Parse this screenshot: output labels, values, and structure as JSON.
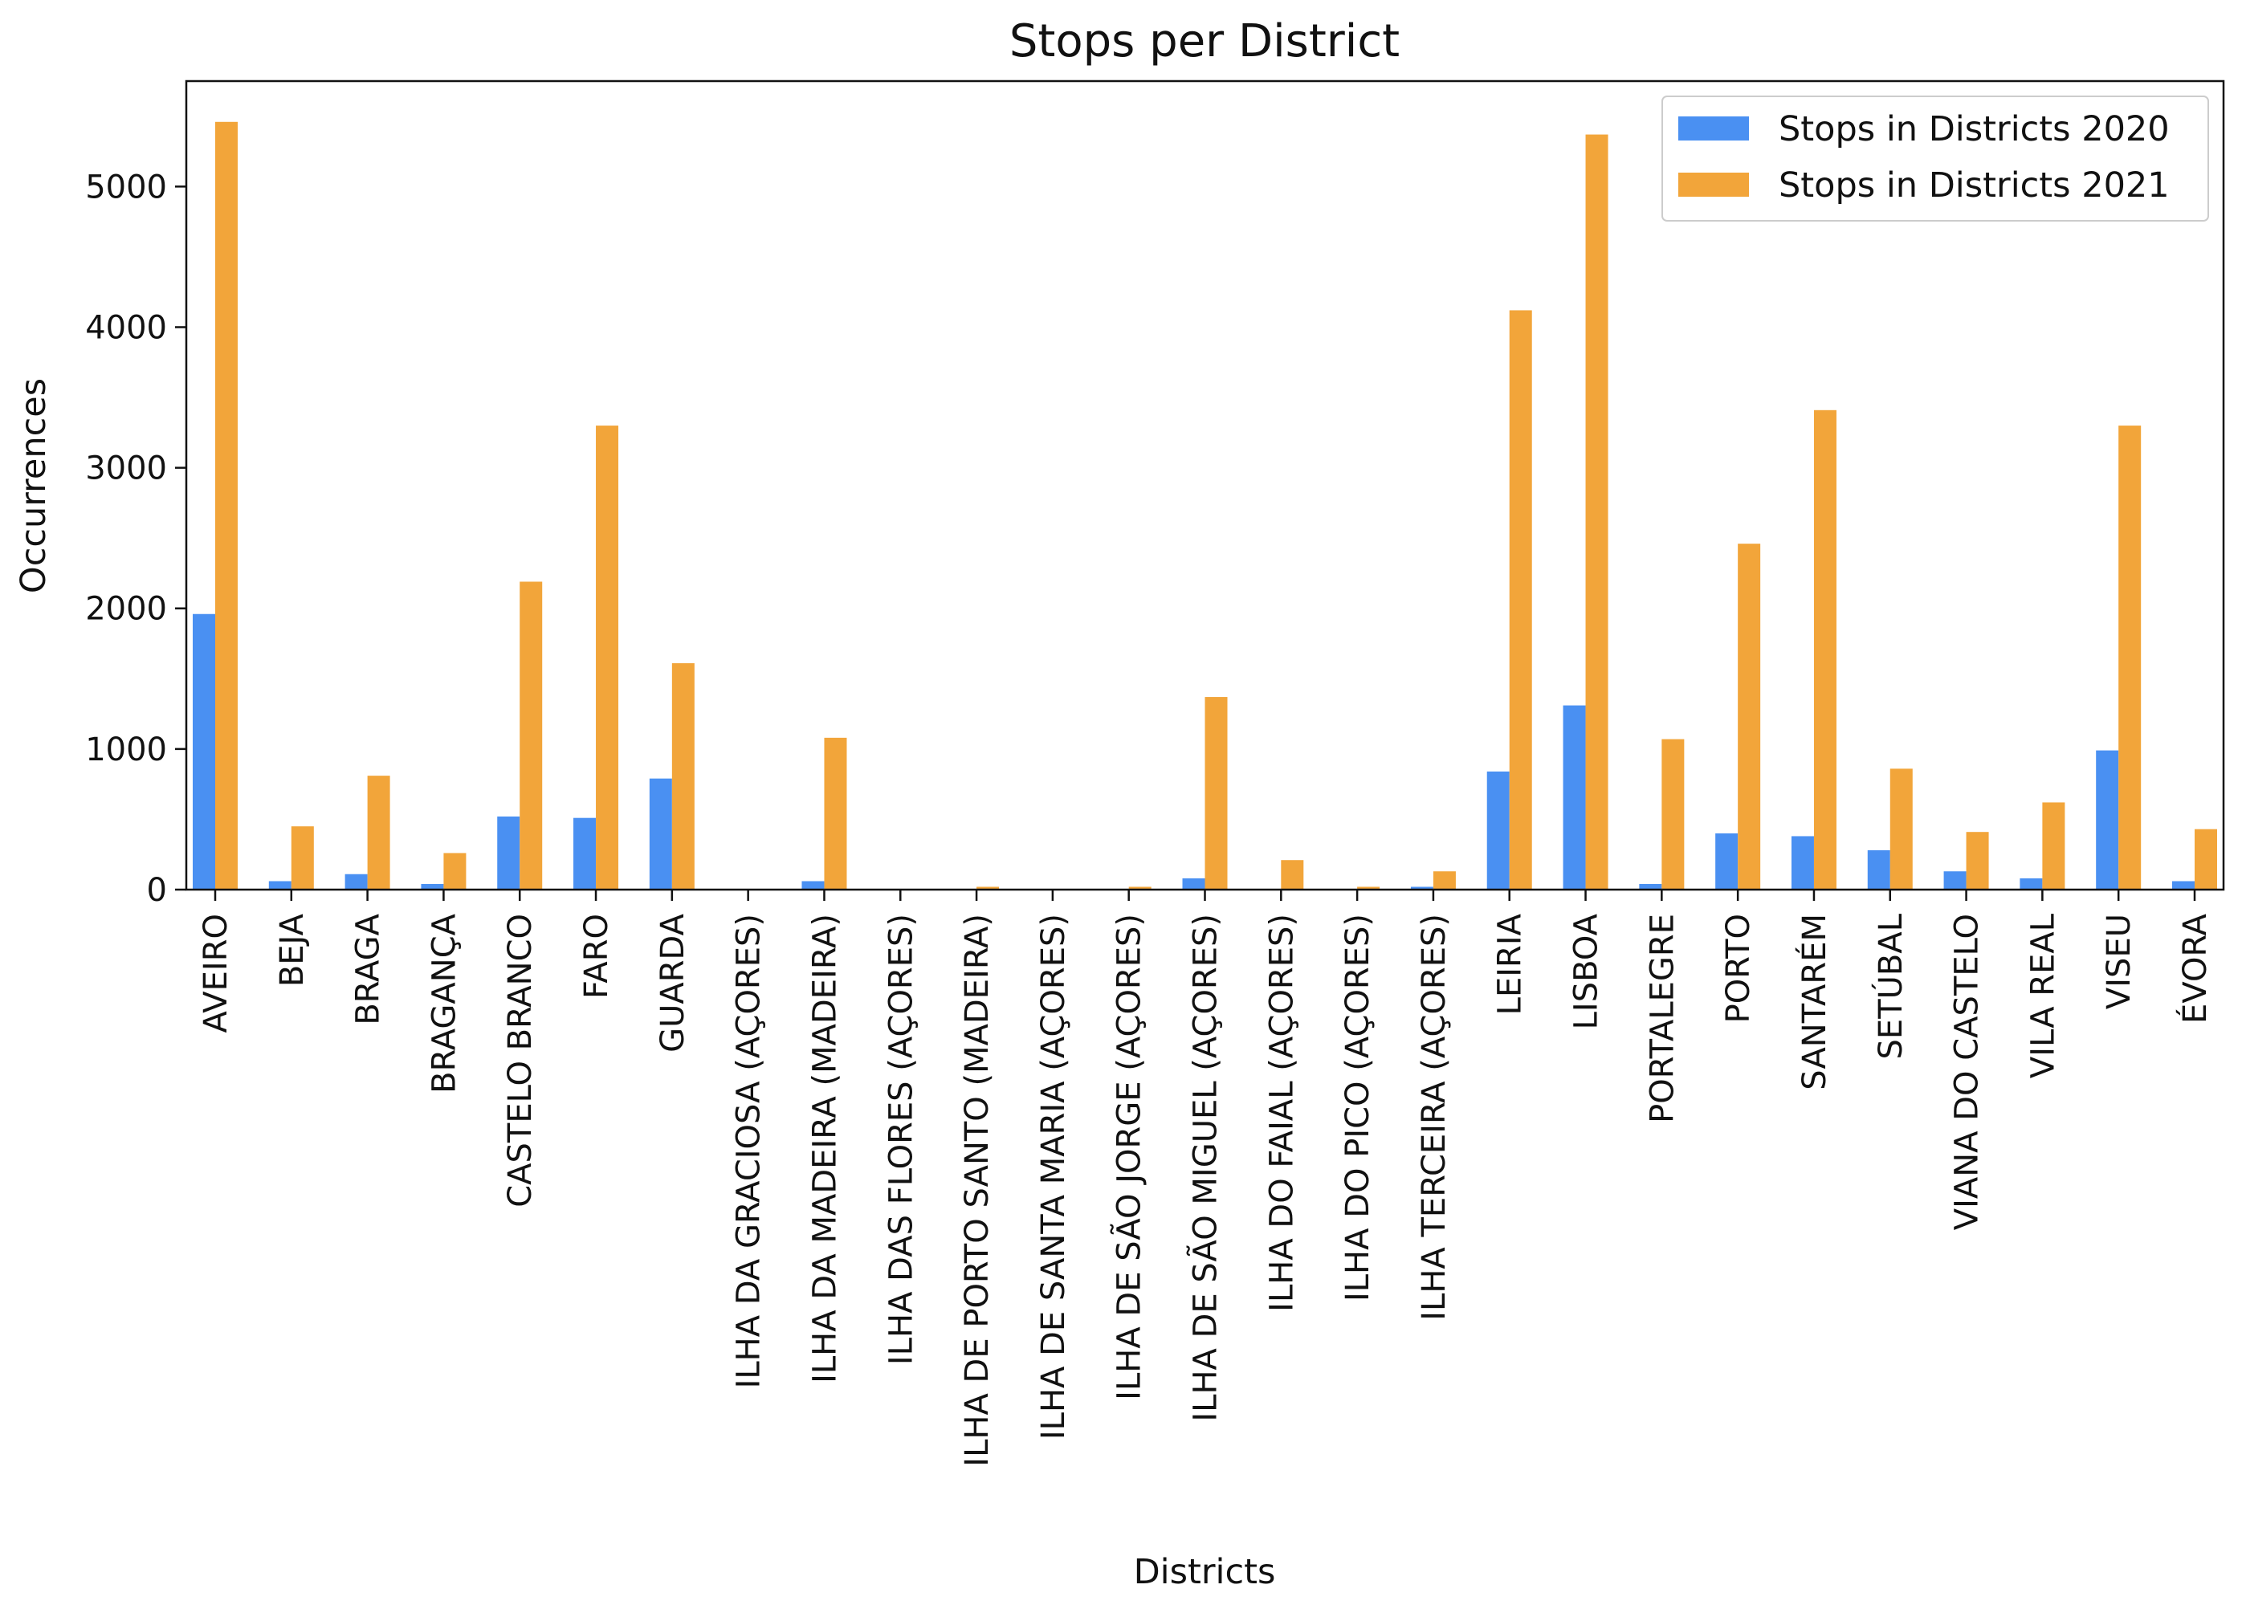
{
  "chart_data": {
    "type": "bar",
    "title": "Stops per District",
    "xlabel": "Districts",
    "ylabel": "Occurrences",
    "ylim": [
      0,
      5750
    ],
    "yticks": [
      0,
      1000,
      2000,
      3000,
      4000,
      5000
    ],
    "categories": [
      "AVEIRO",
      "BEJA",
      "BRAGA",
      "BRAGANÇA",
      "CASTELO BRANCO",
      "FARO",
      "GUARDA",
      "ILHA DA GRACIOSA (AÇORES)",
      "ILHA DA MADEIRA (MADEIRA)",
      "ILHA DAS FLORES (AÇORES)",
      "ILHA DE PORTO SANTO (MADEIRA)",
      "ILHA DE SANTA MARIA (AÇORES)",
      "ILHA DE SÃO JORGE (AÇORES)",
      "ILHA DE SÃO MIGUEL (AÇORES)",
      "ILHA DO FAIAL (AÇORES)",
      "ILHA DO PICO (AÇORES)",
      "ILHA TERCEIRA (AÇORES)",
      "LEIRIA",
      "LISBOA",
      "PORTALEGRE",
      "PORTO",
      "SANTARÉM",
      "SETÚBAL",
      "VIANA DO CASTELO",
      "VILA REAL",
      "VISEU",
      "ÉVORA"
    ],
    "series": [
      {
        "name": "Stops in Districts 2020",
        "color": "#4a90f2",
        "values": [
          1960,
          60,
          110,
          40,
          520,
          510,
          790,
          0,
          60,
          0,
          0,
          0,
          0,
          80,
          0,
          0,
          20,
          840,
          1310,
          40,
          400,
          380,
          280,
          130,
          80,
          990,
          60
        ]
      },
      {
        "name": "Stops in Districts 2021",
        "color": "#f2a53a",
        "values": [
          5460,
          450,
          810,
          260,
          2190,
          3300,
          1610,
          0,
          1080,
          0,
          20,
          0,
          20,
          1370,
          210,
          20,
          130,
          4120,
          5370,
          1070,
          2460,
          3410,
          860,
          410,
          620,
          3300,
          430
        ]
      }
    ],
    "legend_position": "upper-right",
    "grid": false
  }
}
